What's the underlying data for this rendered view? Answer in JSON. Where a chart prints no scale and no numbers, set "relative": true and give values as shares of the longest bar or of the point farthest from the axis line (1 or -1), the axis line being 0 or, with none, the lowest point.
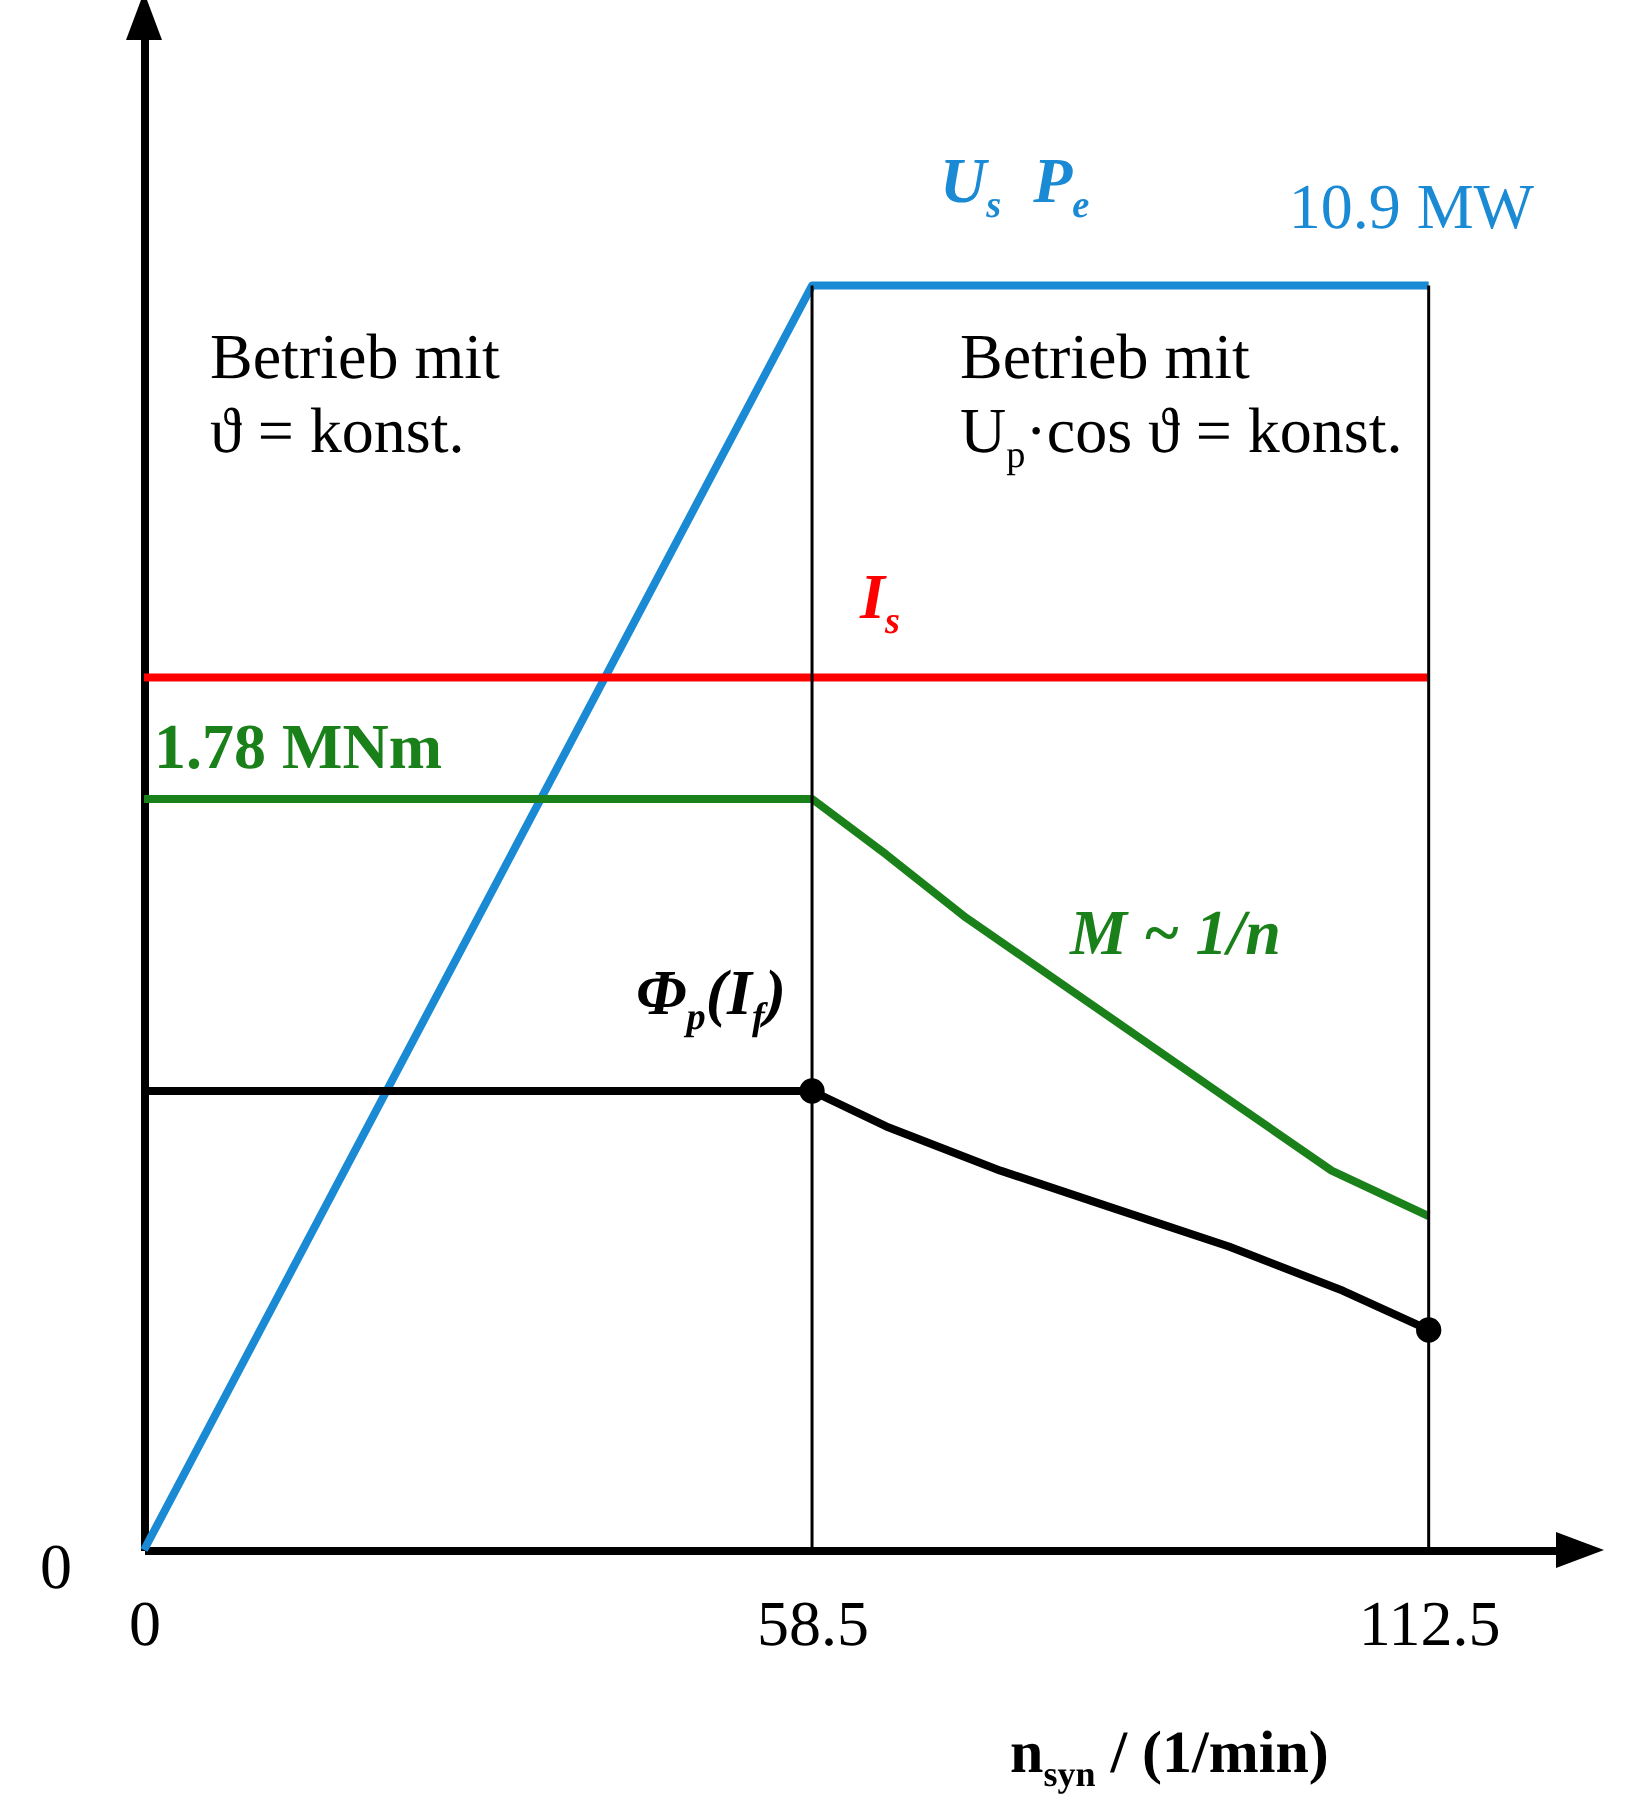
{
  "chart_data": {
    "type": "line",
    "relative": true,
    "xlabel": "n$_{syn}$ / (1/min)",
    "xlim": [
      0,
      124
    ],
    "xticks": [
      0,
      58.5,
      112.5
    ],
    "series": [
      {
        "name": "U$_{s}$  P$_{e}$",
        "color": "#1a8ad4",
        "x": [
          0,
          58.5,
          112.5
        ],
        "values": [
          0,
          1,
          1
        ]
      },
      {
        "name": "I$_{s}$",
        "color": "#ff0000",
        "x": [
          0,
          112.5
        ],
        "values": [
          0.69,
          0.69
        ]
      },
      {
        "name": "M ~ 1/n",
        "color": "#1a801a",
        "x": [
          0,
          58.5,
          65,
          72,
          80,
          88,
          96,
          104,
          112.5
        ],
        "values": [
          0.594,
          0.594,
          0.55,
          0.5,
          0.45,
          0.4,
          0.35,
          0.3,
          0.264
        ]
      },
      {
        "name": "Φ$_{p}$(I$_{f}$)",
        "color": "#000000",
        "x": [
          0,
          58.5,
          65,
          75,
          85,
          95,
          105,
          112.5
        ],
        "values": [
          0.363,
          0.363,
          0.335,
          0.3,
          0.27,
          0.24,
          0.205,
          0.174
        ]
      },
      {
        "type": "scatter",
        "color": "#000000",
        "x": [
          58.5,
          112.5
        ],
        "values": [
          0.363,
          0.174
        ]
      }
    ],
    "ref_lines": [
      {
        "axis": "x",
        "value": 58.5,
        "color": "#000000"
      },
      {
        "axis": "x",
        "value": 112.5,
        "color": "#000000"
      }
    ],
    "annotations": [
      "0",
      {
        "text": "10.9 MW",
        "x": 112.5,
        "y": 1
      },
      {
        "text": "1.78 MNm",
        "x": 0,
        "y": 0.594
      },
      "Betrieb mit\nϑ = konst.",
      "Betrieb mit\nU$_{p}$·cos ϑ = konst."
    ]
  }
}
